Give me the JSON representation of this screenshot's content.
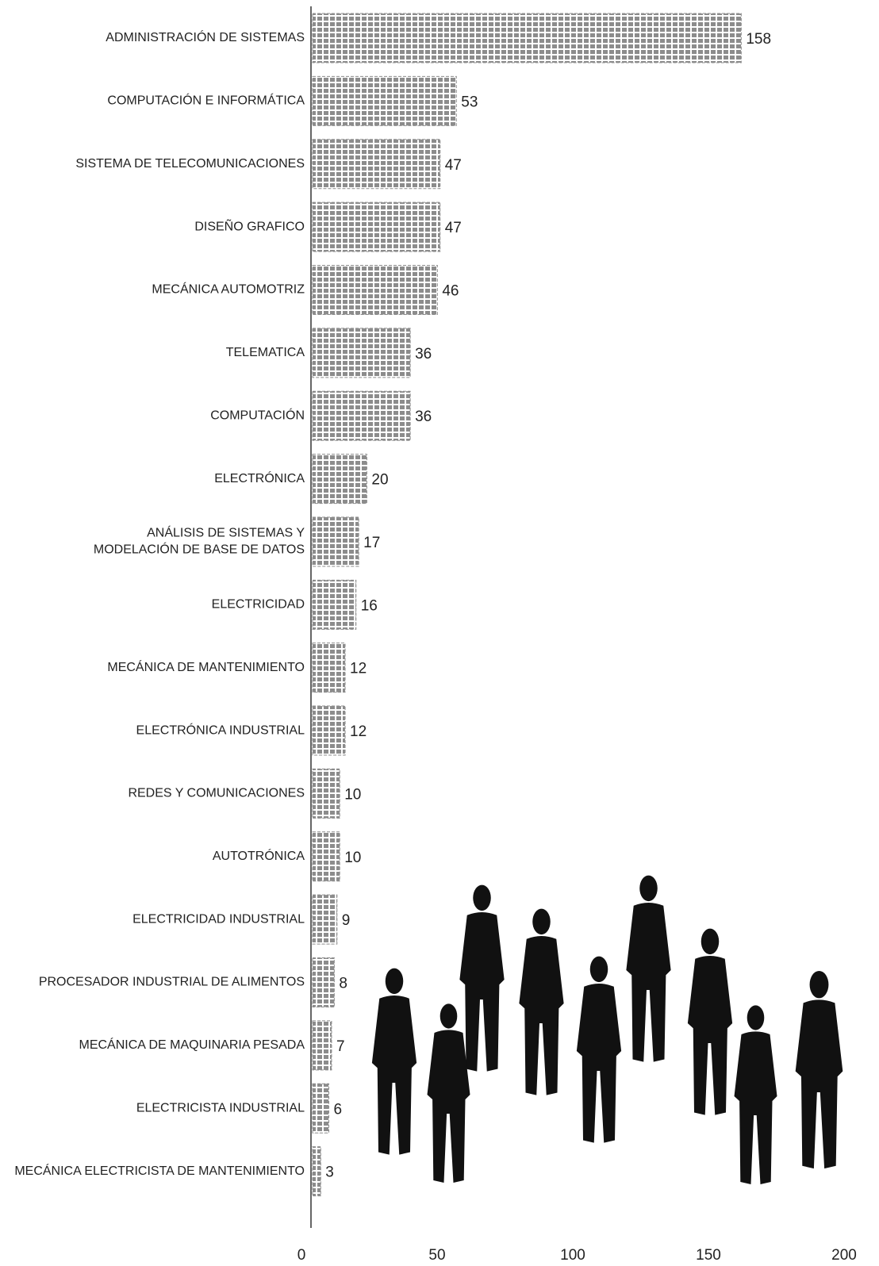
{
  "chart_data": {
    "type": "barh",
    "categories": [
      "ADMINISTRACIÓN DE SISTEMAS",
      "COMPUTACIÓN E INFORMÁTICA",
      "SISTEMA DE TELECOMUNICACIONES",
      "DISEÑO GRAFICO",
      "MECÁNICA AUTOMOTRIZ",
      "TELEMATICA",
      "COMPUTACIÓN",
      "ELECTRÓNICA",
      "ANÁLISIS DE SISTEMAS Y\nMODELACIÓN DE BASE DE DATOS",
      "ELECTRICIDAD",
      "MECÁNICA DE MANTENIMIENTO",
      "ELECTRÓNICA INDUSTRIAL",
      "REDES Y COMUNICACIONES",
      "AUTOTRÓNICA",
      "ELECTRICIDAD INDUSTRIAL",
      "PROCESADOR INDUSTRIAL DE ALIMENTOS",
      "MECÁNICA DE MAQUINARIA PESADA",
      "ELECTRICISTA INDUSTRIAL",
      "MECÁNICA ELECTRICISTA DE MANTENIMIENTO"
    ],
    "values": [
      158,
      53,
      47,
      47,
      46,
      36,
      36,
      20,
      17,
      16,
      12,
      12,
      10,
      10,
      9,
      8,
      7,
      6,
      3
    ],
    "color": "#8c8c8c",
    "xlim": [
      0,
      200
    ],
    "xticks": [
      0,
      50,
      100,
      150,
      200
    ],
    "grid": false
  }
}
